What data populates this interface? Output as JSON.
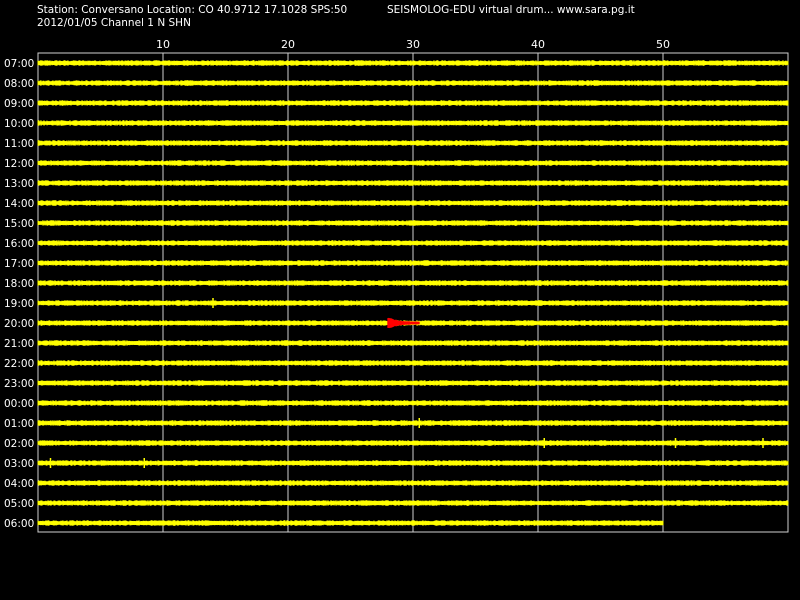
{
  "header": {
    "station_line": "Station: Conversano Location: CO 40.9712 17.1028 SPS:50",
    "app_line": "SEISMOLOG-EDU virtual drum... www.sara.pg.it",
    "date_line": "2012/01/05  Channel 1 N SHN"
  },
  "chart_data": {
    "type": "line",
    "title": "",
    "xlabel": "",
    "ylabel": "",
    "x_unit": "minutes",
    "xlim": [
      0,
      60
    ],
    "x_ticks": [
      10,
      20,
      30,
      40,
      50
    ],
    "grid": true,
    "rows": [
      "07:00",
      "08:00",
      "09:00",
      "10:00",
      "11:00",
      "12:00",
      "13:00",
      "14:00",
      "15:00",
      "16:00",
      "17:00",
      "18:00",
      "19:00",
      "20:00",
      "21:00",
      "22:00",
      "23:00",
      "00:00",
      "01:00",
      "02:00",
      "03:00",
      "04:00",
      "05:00",
      "06:00"
    ],
    "last_row_end_minute": 50,
    "trace_color": "#ffff00",
    "event_color": "#ff0000",
    "grid_color": "#d0d0d0",
    "events": [
      {
        "row": "20:00",
        "start_minute": 28,
        "end_minute": 30.5,
        "highlight": true
      }
    ],
    "spikes": [
      {
        "row": "19:00",
        "minute": 14
      },
      {
        "row": "02:00",
        "minute": 40.5
      },
      {
        "row": "02:00",
        "minute": 51
      },
      {
        "row": "02:00",
        "minute": 58
      },
      {
        "row": "03:00",
        "minute": 1
      },
      {
        "row": "03:00",
        "minute": 8.5
      },
      {
        "row": "01:00",
        "minute": 30.5
      }
    ]
  }
}
